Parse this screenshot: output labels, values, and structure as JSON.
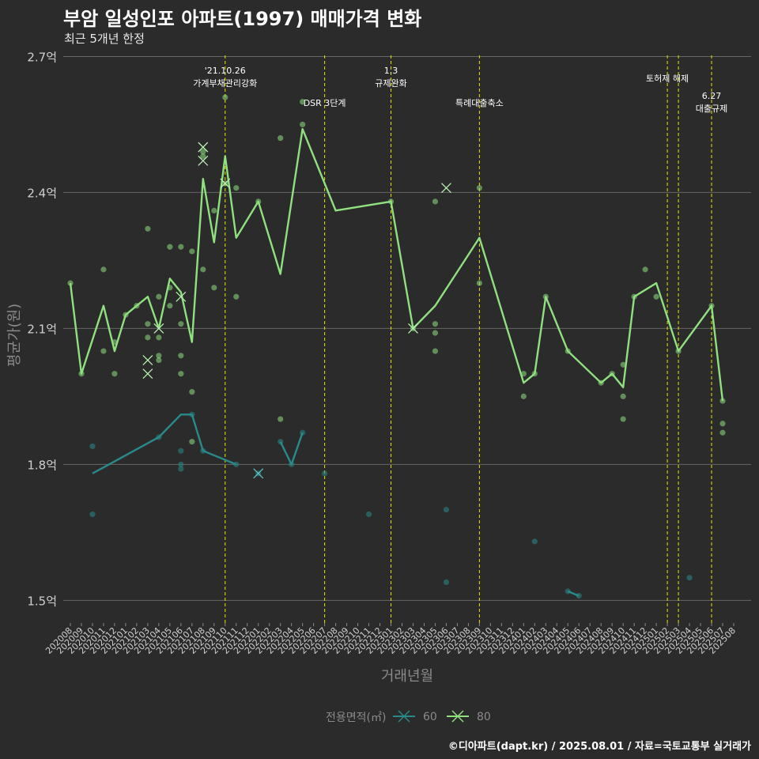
{
  "title": "부암 일성인포 아파트(1997) 매매가격 변화",
  "subtitle": "최근 5개년 한정",
  "caption": "©디아파트(dapt.kr) / 2025.08.01 / 자료=국토교통부 실거래가",
  "chart_data": {
    "type": "line",
    "title": "부암 일성인포 아파트(1997) 매매가격 변화",
    "subtitle": "최근 5개년 한정",
    "xlabel": "거래년월",
    "ylabel": "평균가(원)",
    "ylim": [
      1.45,
      2.72
    ],
    "y_ticks": [
      1.5,
      1.8,
      2.1,
      2.4,
      2.7
    ],
    "y_tick_labels": [
      "1.5억",
      "1.8억",
      "2.1억",
      "2.4억",
      "2.7억"
    ],
    "categories": [
      "202008",
      "202009",
      "202010",
      "202011",
      "202012",
      "202101",
      "202102",
      "202103",
      "202104",
      "202105",
      "202106",
      "202107",
      "202108",
      "202109",
      "202110",
      "202111",
      "202112",
      "202201",
      "202202",
      "202203",
      "202204",
      "202205",
      "202206",
      "202207",
      "202208",
      "202209",
      "202210",
      "202211",
      "202212",
      "202301",
      "202302",
      "202303",
      "202304",
      "202305",
      "202306",
      "202307",
      "202308",
      "202309",
      "202310",
      "202311",
      "202312",
      "202401",
      "202402",
      "202403",
      "202404",
      "202405",
      "202406",
      "202407",
      "202408",
      "202409",
      "202410",
      "202411",
      "202412",
      "202501",
      "202502",
      "202503",
      "202504",
      "202505",
      "202506",
      "202507",
      "202508"
    ],
    "legend_title": "전용면적(㎡)",
    "legend_position": "bottom",
    "series": [
      {
        "name": "60",
        "color": "#2a8a8a",
        "line": [
          [
            "202010",
            1.78
          ],
          [
            "202104",
            1.86
          ],
          [
            "202106",
            1.91
          ],
          [
            "202107",
            1.91
          ],
          [
            "202108",
            1.83
          ],
          [
            "202111",
            1.8
          ],
          null,
          [
            "202203",
            1.85
          ],
          [
            "202204",
            1.8
          ],
          [
            "202205",
            1.87
          ],
          null,
          [
            "202405",
            1.52
          ],
          [
            "202406",
            1.51
          ]
        ],
        "points": [
          [
            "202010",
            1.84
          ],
          [
            "202010",
            1.69
          ],
          [
            "202104",
            1.86
          ],
          [
            "202106",
            1.83
          ],
          [
            "202106",
            1.8
          ],
          [
            "202106",
            1.79
          ],
          [
            "202107",
            1.91
          ],
          [
            "202108",
            1.83
          ],
          [
            "202111",
            1.8
          ],
          [
            "202201",
            1.78
          ],
          [
            "202203",
            1.85
          ],
          [
            "202204",
            1.8
          ],
          [
            "202205",
            1.87
          ],
          [
            "202207",
            1.78
          ],
          [
            "202211",
            1.69
          ],
          [
            "202306",
            1.7
          ],
          [
            "202306",
            1.54
          ],
          [
            "202402",
            1.63
          ],
          [
            "202405",
            1.52
          ],
          [
            "202406",
            1.51
          ],
          [
            "202504",
            1.55
          ]
        ],
        "crosses": [
          [
            "202201",
            1.78
          ]
        ]
      },
      {
        "name": "80",
        "color": "#90e080",
        "line": [
          [
            "202008",
            2.2
          ],
          [
            "202009",
            2.0
          ],
          [
            "202011",
            2.15
          ],
          [
            "202012",
            2.05
          ],
          [
            "202101",
            2.13
          ],
          [
            "202102",
            2.15
          ],
          [
            "202103",
            2.17
          ],
          [
            "202104",
            2.1
          ],
          [
            "202105",
            2.21
          ],
          [
            "202106",
            2.18
          ],
          [
            "202107",
            2.07
          ],
          [
            "202108",
            2.43
          ],
          [
            "202109",
            2.29
          ],
          [
            "202110",
            2.48
          ],
          [
            "202111",
            2.3
          ],
          [
            "202201",
            2.38
          ],
          [
            "202203",
            2.22
          ],
          [
            "202205",
            2.54
          ],
          [
            "202208",
            2.36
          ],
          [
            "202301",
            2.38
          ],
          [
            "202303",
            2.1
          ],
          [
            "202305",
            2.15
          ],
          [
            "202309",
            2.3
          ],
          [
            "202401",
            1.98
          ],
          [
            "202402",
            2.0
          ],
          [
            "202403",
            2.17
          ],
          [
            "202405",
            2.05
          ],
          [
            "202408",
            1.98
          ],
          [
            "202409",
            2.0
          ],
          [
            "202410",
            1.97
          ],
          [
            "202411",
            2.17
          ],
          [
            "202501",
            2.2
          ],
          [
            "202503",
            2.05
          ],
          [
            "202506",
            2.15
          ],
          [
            "202507",
            1.94
          ]
        ],
        "points": [
          [
            "202008",
            2.2
          ],
          [
            "202009",
            2.0
          ],
          [
            "202011",
            2.23
          ],
          [
            "202011",
            2.05
          ],
          [
            "202012",
            2.07
          ],
          [
            "202012",
            2.0
          ],
          [
            "202101",
            2.13
          ],
          [
            "202102",
            2.15
          ],
          [
            "202103",
            2.32
          ],
          [
            "202103",
            2.11
          ],
          [
            "202103",
            2.08
          ],
          [
            "202104",
            2.17
          ],
          [
            "202104",
            2.08
          ],
          [
            "202104",
            2.04
          ],
          [
            "202104",
            2.03
          ],
          [
            "202105",
            2.28
          ],
          [
            "202105",
            2.19
          ],
          [
            "202105",
            2.15
          ],
          [
            "202106",
            2.28
          ],
          [
            "202106",
            2.11
          ],
          [
            "202106",
            2.04
          ],
          [
            "202106",
            2.0
          ],
          [
            "202107",
            2.27
          ],
          [
            "202107",
            1.96
          ],
          [
            "202107",
            1.85
          ],
          [
            "202108",
            2.49
          ],
          [
            "202108",
            2.48
          ],
          [
            "202108",
            2.23
          ],
          [
            "202109",
            2.36
          ],
          [
            "202109",
            2.19
          ],
          [
            "202110",
            2.61
          ],
          [
            "202110",
            2.42
          ],
          [
            "202111",
            2.41
          ],
          [
            "202111",
            2.17
          ],
          [
            "202201",
            2.38
          ],
          [
            "202203",
            2.52
          ],
          [
            "202203",
            1.9
          ],
          [
            "202205",
            2.6
          ],
          [
            "202205",
            2.55
          ],
          [
            "202301",
            2.38
          ],
          [
            "202303",
            2.1
          ],
          [
            "202305",
            2.38
          ],
          [
            "202305",
            2.11
          ],
          [
            "202305",
            2.09
          ],
          [
            "202305",
            2.05
          ],
          [
            "202309",
            2.41
          ],
          [
            "202309",
            2.2
          ],
          [
            "202401",
            2.0
          ],
          [
            "202401",
            1.95
          ],
          [
            "202402",
            2.0
          ],
          [
            "202403",
            2.17
          ],
          [
            "202405",
            2.05
          ],
          [
            "202408",
            1.98
          ],
          [
            "202409",
            2.0
          ],
          [
            "202410",
            2.02
          ],
          [
            "202410",
            1.95
          ],
          [
            "202410",
            1.9
          ],
          [
            "202411",
            2.17
          ],
          [
            "202412",
            2.23
          ],
          [
            "202501",
            2.17
          ],
          [
            "202503",
            2.05
          ],
          [
            "202506",
            2.15
          ],
          [
            "202507",
            1.94
          ],
          [
            "202507",
            1.89
          ],
          [
            "202507",
            1.87
          ]
        ],
        "crosses": [
          [
            "202104",
            2.1
          ],
          [
            "202103",
            2.03
          ],
          [
            "202103",
            2.0
          ],
          [
            "202106",
            2.17
          ],
          [
            "202108",
            2.5
          ],
          [
            "202108",
            2.47
          ],
          [
            "202110",
            2.42
          ],
          [
            "202303",
            2.1
          ],
          [
            "202306",
            2.41
          ]
        ]
      }
    ],
    "vlines": [
      {
        "x": "202110",
        "label": "'21.10.26\n가계부채관리강화"
      },
      {
        "x": "202207",
        "label": "DSR 3단계"
      },
      {
        "x": "202301",
        "label": "1.3\n규제완화"
      },
      {
        "x": "202309",
        "label": "특례대출축소"
      },
      {
        "x": "202502",
        "label": "토허제 해제"
      },
      {
        "x": "202503",
        "label": ""
      },
      {
        "x": "202506",
        "label": "6.27\n대출규제"
      }
    ]
  }
}
